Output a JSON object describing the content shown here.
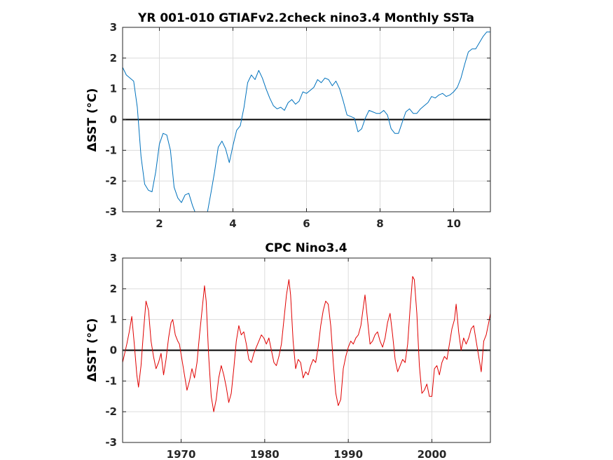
{
  "chart_data": [
    {
      "type": "line",
      "title": "YR 001-010 GTIAFv2.2check nino3.4 Monthly SSTa",
      "xlabel": "",
      "ylabel": "ΔSST (°C)",
      "xlim": [
        1,
        11
      ],
      "ylim": [
        -3,
        3
      ],
      "xticks": [
        2,
        4,
        6,
        8,
        10
      ],
      "yticks": [
        -3,
        -2,
        -1,
        0,
        1,
        2,
        3
      ],
      "grid": true,
      "zero_line": true,
      "series": [
        {
          "color": "#0072bd",
          "x": [
            1.0,
            1.1,
            1.2,
            1.3,
            1.4,
            1.5,
            1.6,
            1.7,
            1.8,
            1.9,
            2.0,
            2.1,
            2.2,
            2.3,
            2.4,
            2.5,
            2.6,
            2.7,
            2.8,
            2.9,
            3.0,
            3.1,
            3.2,
            3.3,
            3.4,
            3.5,
            3.6,
            3.7,
            3.8,
            3.9,
            4.0,
            4.1,
            4.2,
            4.3,
            4.4,
            4.5,
            4.6,
            4.7,
            4.8,
            4.9,
            5.0,
            5.1,
            5.2,
            5.3,
            5.4,
            5.5,
            5.6,
            5.7,
            5.8,
            5.9,
            6.0,
            6.1,
            6.2,
            6.3,
            6.4,
            6.5,
            6.6,
            6.7,
            6.8,
            6.9,
            7.0,
            7.1,
            7.2,
            7.3,
            7.4,
            7.5,
            7.6,
            7.7,
            7.8,
            7.9,
            8.0,
            8.1,
            8.2,
            8.3,
            8.4,
            8.5,
            8.6,
            8.7,
            8.8,
            8.9,
            9.0,
            9.1,
            9.2,
            9.3,
            9.4,
            9.5,
            9.6,
            9.7,
            9.8,
            9.9,
            10.0,
            10.1,
            10.2,
            10.3,
            10.4,
            10.5,
            10.6,
            10.7,
            10.8,
            10.9,
            11.0
          ],
          "y": [
            1.7,
            1.45,
            1.35,
            1.25,
            0.4,
            -1.2,
            -2.1,
            -2.3,
            -2.35,
            -1.7,
            -0.8,
            -0.45,
            -0.5,
            -1.0,
            -2.2,
            -2.55,
            -2.7,
            -2.45,
            -2.4,
            -2.8,
            -3.1,
            -3.2,
            -3.3,
            -3.05,
            -2.4,
            -1.7,
            -0.9,
            -0.7,
            -0.95,
            -1.4,
            -0.85,
            -0.35,
            -0.2,
            0.4,
            1.2,
            1.45,
            1.3,
            1.6,
            1.35,
            1.0,
            0.7,
            0.45,
            0.35,
            0.4,
            0.3,
            0.55,
            0.65,
            0.5,
            0.6,
            0.9,
            0.85,
            0.95,
            1.05,
            1.3,
            1.2,
            1.35,
            1.3,
            1.1,
            1.25,
            1.0,
            0.6,
            0.15,
            0.1,
            0.05,
            -0.4,
            -0.3,
            0.05,
            0.3,
            0.25,
            0.2,
            0.2,
            0.3,
            0.15,
            -0.3,
            -0.45,
            -0.45,
            -0.1,
            0.25,
            0.35,
            0.2,
            0.2,
            0.35,
            0.45,
            0.55,
            0.75,
            0.7,
            0.8,
            0.85,
            0.75,
            0.8,
            0.9,
            1.05,
            1.35,
            1.8,
            2.2,
            2.3,
            2.3,
            2.5,
            2.7,
            2.85,
            2.85
          ]
        }
      ]
    },
    {
      "type": "line",
      "title": "CPC Nino3.4",
      "xlabel": "",
      "ylabel": "ΔSST (°C)",
      "xlim": [
        1963,
        2007
      ],
      "ylim": [
        -3,
        3
      ],
      "xticks": [
        1970,
        1980,
        1990,
        2000
      ],
      "yticks": [
        -3,
        -2,
        -1,
        0,
        1,
        2,
        3
      ],
      "grid": true,
      "zero_line": true,
      "series": [
        {
          "color": "#e00000",
          "x": [
            1963.0,
            1963.5,
            1963.8,
            1964.1,
            1964.4,
            1964.7,
            1964.9,
            1965.2,
            1965.5,
            1965.8,
            1966.1,
            1966.4,
            1966.7,
            1967.0,
            1967.3,
            1967.6,
            1967.9,
            1968.2,
            1968.5,
            1968.8,
            1969.0,
            1969.3,
            1969.6,
            1969.8,
            1970.1,
            1970.4,
            1970.7,
            1971.0,
            1971.3,
            1971.6,
            1971.9,
            1972.2,
            1972.5,
            1972.8,
            1973.0,
            1973.3,
            1973.6,
            1973.9,
            1974.2,
            1974.5,
            1974.8,
            1975.1,
            1975.4,
            1975.7,
            1976.0,
            1976.3,
            1976.6,
            1976.9,
            1977.2,
            1977.5,
            1977.8,
            1978.1,
            1978.4,
            1978.7,
            1979.0,
            1979.3,
            1979.6,
            1979.9,
            1980.2,
            1980.5,
            1980.8,
            1981.1,
            1981.4,
            1981.7,
            1982.0,
            1982.3,
            1982.6,
            1982.9,
            1983.1,
            1983.4,
            1983.7,
            1984.0,
            1984.3,
            1984.6,
            1984.9,
            1985.2,
            1985.5,
            1985.8,
            1986.1,
            1986.4,
            1986.7,
            1987.0,
            1987.3,
            1987.6,
            1987.9,
            1988.2,
            1988.5,
            1988.8,
            1989.1,
            1989.4,
            1989.7,
            1990.0,
            1990.3,
            1990.6,
            1990.9,
            1991.2,
            1991.5,
            1991.8,
            1992.0,
            1992.3,
            1992.6,
            1992.9,
            1993.2,
            1993.5,
            1993.8,
            1994.1,
            1994.4,
            1994.7,
            1995.0,
            1995.3,
            1995.6,
            1995.9,
            1996.2,
            1996.5,
            1996.8,
            1997.1,
            1997.4,
            1997.7,
            1997.9,
            1998.2,
            1998.5,
            1998.8,
            1999.1,
            1999.4,
            1999.7,
            2000.0,
            2000.3,
            2000.6,
            2000.9,
            2001.2,
            2001.5,
            2001.8,
            2002.1,
            2002.4,
            2002.7,
            2002.9,
            2003.2,
            2003.5,
            2003.8,
            2004.1,
            2004.4,
            2004.7,
            2005.0,
            2005.3,
            2005.6,
            2005.9,
            2006.2,
            2006.5,
            2006.8,
            2007.0
          ],
          "y": [
            -0.4,
            0.2,
            0.6,
            1.1,
            0.2,
            -0.8,
            -1.2,
            -0.5,
            0.6,
            1.6,
            1.3,
            0.3,
            -0.2,
            -0.6,
            -0.4,
            -0.1,
            -0.8,
            -0.3,
            0.4,
            0.9,
            1.0,
            0.5,
            0.3,
            0.2,
            -0.3,
            -0.8,
            -1.3,
            -1.0,
            -0.6,
            -0.9,
            -0.4,
            0.5,
            1.3,
            2.1,
            1.6,
            -0.2,
            -1.5,
            -2.0,
            -1.6,
            -0.9,
            -0.5,
            -0.8,
            -1.2,
            -1.7,
            -1.4,
            -0.6,
            0.3,
            0.8,
            0.5,
            0.6,
            0.2,
            -0.3,
            -0.4,
            -0.1,
            0.1,
            0.3,
            0.5,
            0.4,
            0.2,
            0.4,
            0.0,
            -0.4,
            -0.5,
            -0.2,
            0.2,
            1.0,
            1.8,
            2.3,
            1.8,
            0.3,
            -0.6,
            -0.3,
            -0.4,
            -0.9,
            -0.7,
            -0.8,
            -0.5,
            -0.3,
            -0.4,
            0.1,
            0.8,
            1.3,
            1.6,
            1.5,
            0.8,
            -0.4,
            -1.4,
            -1.8,
            -1.6,
            -0.6,
            -0.2,
            0.1,
            0.3,
            0.2,
            0.4,
            0.5,
            0.8,
            1.4,
            1.8,
            1.0,
            0.2,
            0.3,
            0.5,
            0.6,
            0.3,
            0.1,
            0.4,
            0.9,
            1.2,
            0.5,
            -0.3,
            -0.7,
            -0.5,
            -0.3,
            -0.4,
            0.2,
            1.4,
            2.4,
            2.3,
            1.2,
            -0.5,
            -1.4,
            -1.3,
            -1.1,
            -1.5,
            -1.5,
            -0.6,
            -0.5,
            -0.8,
            -0.4,
            -0.2,
            -0.3,
            0.2,
            0.7,
            1.0,
            1.5,
            0.6,
            0.0,
            0.4,
            0.2,
            0.4,
            0.7,
            0.8,
            0.3,
            -0.2,
            -0.7,
            0.3,
            0.5,
            0.9,
            1.2
          ]
        }
      ]
    }
  ]
}
